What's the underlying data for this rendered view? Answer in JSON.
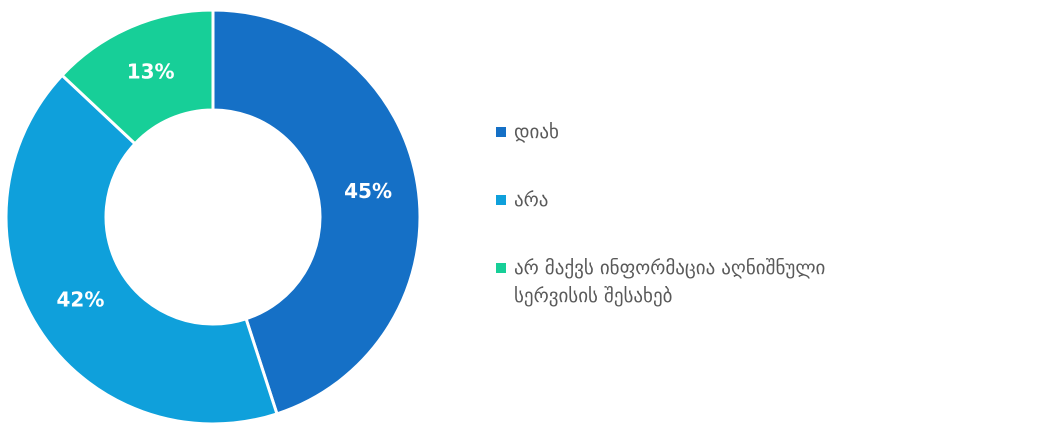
{
  "chart_data": {
    "type": "donut",
    "categories": [
      "დიახ",
      "არა",
      "არ მაქვს ინფორმაცია აღნიშნული სერვისის შესახებ"
    ],
    "values": [
      45,
      42,
      13
    ],
    "value_labels": [
      "45%",
      "42%",
      "13%"
    ],
    "colors": [
      "#1570c6",
      "#0fa0db",
      "#17cf98"
    ],
    "legend": "right"
  }
}
